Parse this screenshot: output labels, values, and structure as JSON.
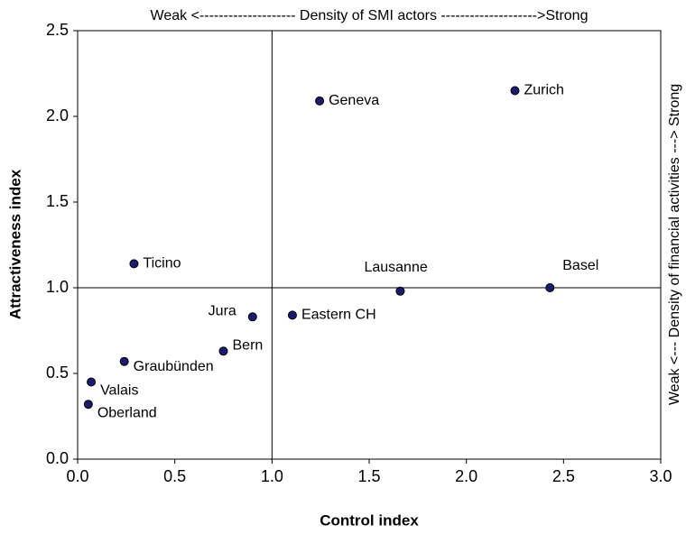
{
  "chart_data": {
    "type": "scatter",
    "top_annotation": "Weak <-------------------- Density of SMI actors -------------------->Strong",
    "right_annotation": "Weak <--- Density of financial activities ---> Strong",
    "x_label": "Control index",
    "y_label": "Attractiveness index",
    "labels": [
      "Geneva",
      "Zurich",
      "Ticino",
      "Lausanne",
      "Basel",
      "Jura",
      "Eastern CH",
      "Bern",
      "Graubünden",
      "Valais",
      "Oberland"
    ],
    "x": [
      1.245,
      2.25,
      0.29,
      1.66,
      2.43,
      0.9,
      1.105,
      0.75,
      0.24,
      0.07,
      0.055
    ],
    "values": [
      2.09,
      2.15,
      1.14,
      0.98,
      1.0,
      0.83,
      0.84,
      0.63,
      0.57,
      0.45,
      0.32
    ],
    "color": "#1a1a6e",
    "xlim": [
      0,
      3
    ],
    "ylim": [
      0,
      2.5
    ],
    "xticks": [
      {
        "value": 0,
        "label": "0.0"
      },
      {
        "value": 0.5,
        "label": "0.5"
      },
      {
        "value": 1,
        "label": "1.0"
      },
      {
        "value": 1.5,
        "label": "1.5"
      },
      {
        "value": 2,
        "label": "2.0"
      },
      {
        "value": 2.5,
        "label": "2.5"
      },
      {
        "value": 3,
        "label": "3.0"
      }
    ],
    "yticks": [
      {
        "value": 0,
        "label": "0.0"
      },
      {
        "value": 0.5,
        "label": "0.5"
      },
      {
        "value": 1,
        "label": "1.0"
      },
      {
        "value": 1.5,
        "label": "1.5"
      },
      {
        "value": 2,
        "label": "2.0"
      },
      {
        "value": 2.5,
        "label": "2.5"
      }
    ],
    "vline": 1,
    "hline": 1
  }
}
